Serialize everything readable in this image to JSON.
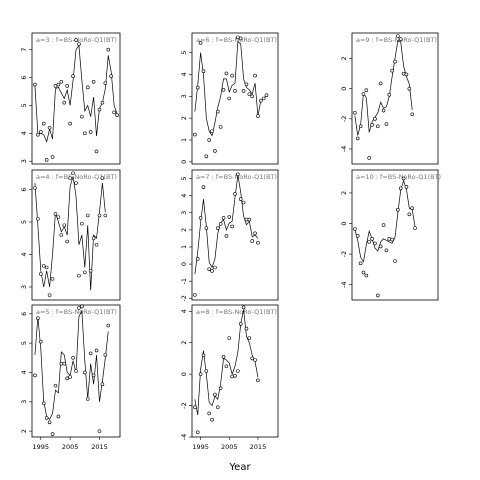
{
  "figure": {
    "xlabel": "Year"
  },
  "chart_data": [
    {
      "type": "line",
      "label": "a=3 : f=BS-NoRo-Q1(BT)",
      "xlim": [
        1992,
        2022
      ],
      "ylim": [
        2.9,
        7.6
      ],
      "yticks": [
        3,
        4,
        5,
        6,
        7
      ],
      "xticks": [
        1995,
        2005,
        2015
      ],
      "show_xticks": false,
      "x": [
        1993,
        1994,
        1995,
        1996,
        1997,
        1998,
        1999,
        2000,
        2001,
        2002,
        2003,
        2004,
        2005,
        2006,
        2007,
        2008,
        2009,
        2010,
        2011,
        2012,
        2013,
        2014,
        2015,
        2016,
        2017,
        2018,
        2019,
        2020,
        2021,
        2022
      ],
      "points": [
        5.75,
        3.95,
        4.05,
        4.35,
        3.05,
        4.2,
        3.15,
        5.7,
        5.75,
        5.85,
        5.1,
        5.7,
        4.35,
        6.05,
        7.35,
        7.2,
        4.6,
        4.0,
        5.65,
        4.05,
        5.85,
        3.35,
        4.85,
        5.1,
        5.8,
        7.0,
        6.05,
        4.75,
        4.65
      ],
      "fit": [
        5.7,
        4.0,
        4.0,
        3.95,
        3.7,
        4.15,
        3.8,
        5.6,
        5.65,
        5.45,
        5.25,
        5.55,
        5.0,
        5.9,
        7.0,
        7.15,
        5.9,
        4.8,
        5.0,
        4.6,
        5.3,
        3.9,
        4.9,
        5.1,
        5.6,
        6.8,
        6.2,
        5.0,
        4.7
      ]
    },
    {
      "type": "line",
      "label": "a=6 : f=BS-NoRo-Q1(BT)",
      "xlim": [
        1992,
        2022
      ],
      "ylim": [
        -0.1,
        5.9
      ],
      "yticks": [
        0,
        1,
        2,
        3,
        4,
        5
      ],
      "xticks": [
        1995,
        2005,
        2015
      ],
      "show_xticks": false,
      "x": [
        1993,
        1994,
        1995,
        1996,
        1997,
        1998,
        1999,
        2000,
        2001,
        2002,
        2003,
        2004,
        2005,
        2006,
        2007,
        2008,
        2009,
        2010,
        2011,
        2012,
        2013,
        2014,
        2015,
        2016,
        2017,
        2018,
        2019,
        2020,
        2021,
        2022
      ],
      "points": [
        1.25,
        3.4,
        5.45,
        4.15,
        0.25,
        1.0,
        1.4,
        0.5,
        2.3,
        1.6,
        3.3,
        4.05,
        2.9,
        3.95,
        3.25,
        5.7,
        5.65,
        3.25,
        3.55,
        3.1,
        3.0,
        3.95,
        2.1,
        2.8,
        2.9,
        3.05
      ],
      "fit": [
        2.3,
        3.5,
        5.0,
        4.0,
        2.0,
        1.4,
        1.2,
        1.8,
        2.5,
        3.0,
        3.8,
        3.8,
        3.2,
        3.5,
        3.6,
        5.5,
        5.4,
        3.8,
        3.4,
        3.3,
        3.1,
        3.6,
        2.1,
        2.8,
        2.95,
        3.0
      ]
    },
    {
      "type": "line",
      "label": "a=9 : f=BS-NoRo-Q1(BT)",
      "xlim": [
        1992,
        2022
      ],
      "ylim": [
        -5.0,
        3.7
      ],
      "yticks": [
        -4,
        -2,
        0,
        2
      ],
      "xticks": [
        1995,
        2005,
        2015
      ],
      "show_xticks": false,
      "x": [
        1993,
        1994,
        1995,
        1996,
        1997,
        1998,
        1999,
        2000,
        2001,
        2002,
        2003,
        2004,
        2005,
        2006,
        2007,
        2008,
        2009,
        2010,
        2011,
        2012,
        2013,
        2014,
        2015,
        2016,
        2017,
        2018,
        2019,
        2020,
        2021,
        2022
      ],
      "points": [
        -1.6,
        -3.3,
        -2.5,
        -0.35,
        -0.1,
        -4.6,
        -2.4,
        -2.0,
        -2.5,
        0.35,
        -1.45,
        -2.35,
        -0.4,
        1.2,
        1.8,
        3.5,
        3.3,
        1.0,
        0.95,
        0.0,
        -1.7
      ],
      "fit": [
        -1.8,
        -3.1,
        -2.4,
        -0.3,
        -0.6,
        -2.9,
        -2.2,
        -1.9,
        -1.6,
        -0.9,
        -1.3,
        -1.2,
        -0.5,
        0.8,
        2.0,
        3.2,
        3.1,
        1.5,
        0.8,
        0.3,
        -1.4
      ]
    },
    {
      "type": "line",
      "label": "a=4 : f=BS-NoRo-Q1(BT)",
      "xlim": [
        1992,
        2022
      ],
      "ylim": [
        2.6,
        6.6
      ],
      "yticks": [
        3,
        4,
        5,
        6
      ],
      "xticks": [
        1995,
        2005,
        2015
      ],
      "show_xticks": false,
      "x": [
        1993,
        1994,
        1995,
        1996,
        1997,
        1998,
        1999,
        2000,
        2001,
        2002,
        2003,
        2004,
        2005,
        2006,
        2007,
        2008,
        2009,
        2010,
        2011,
        2012,
        2013,
        2014,
        2015,
        2016,
        2017,
        2018,
        2019,
        2020,
        2021,
        2022
      ],
      "points": [
        6.05,
        5.1,
        3.4,
        3.65,
        3.6,
        2.75,
        3.25,
        5.25,
        5.15,
        4.6,
        4.9,
        4.4,
        6.35,
        6.5,
        6.2,
        3.35,
        4.95,
        3.45,
        5.2,
        3.5,
        4.5,
        4.3,
        5.2,
        6.35,
        5.2
      ],
      "fit": [
        6.2,
        4.9,
        3.5,
        3.0,
        3.5,
        3.0,
        4.0,
        5.3,
        5.0,
        4.7,
        4.85,
        4.6,
        6.1,
        6.4,
        5.8,
        4.3,
        4.6,
        3.6,
        4.9,
        2.9,
        4.6,
        4.5,
        5.3,
        6.2,
        5.3
      ]
    },
    {
      "type": "line",
      "label": "a=7 : f=BS-NoRo-Q1(BT)",
      "xlim": [
        1992,
        2022
      ],
      "ylim": [
        -2.1,
        5.5
      ],
      "yticks": [
        -2,
        -1,
        0,
        1,
        2,
        3,
        4,
        5
      ],
      "xticks": [
        1995,
        2005,
        2015
      ],
      "show_xticks": false,
      "x": [
        1993,
        1994,
        1995,
        1996,
        1997,
        1998,
        1999,
        2000,
        2001,
        2002,
        2003,
        2004,
        2005,
        2006,
        2007,
        2008,
        2009,
        2010,
        2011,
        2012,
        2013,
        2014,
        2015,
        2016,
        2017,
        2018,
        2019,
        2020,
        2021,
        2022
      ],
      "points": [
        -1.8,
        0.3,
        2.7,
        4.5,
        2.1,
        -0.3,
        -0.4,
        -0.2,
        2.1,
        2.35,
        2.7,
        1.65,
        2.75,
        2.2,
        4.1,
        5.25,
        3.8,
        3.6,
        2.6,
        2.6,
        1.35,
        1.8,
        1.25
      ],
      "fit": [
        -0.6,
        0.7,
        2.4,
        3.8,
        2.2,
        0.1,
        -0.2,
        0.3,
        1.8,
        2.4,
        2.6,
        2.0,
        2.4,
        2.5,
        3.9,
        5.2,
        4.2,
        2.8,
        2.3,
        2.5,
        1.6,
        1.7,
        1.5
      ]
    },
    {
      "type": "line",
      "label": "a=10 : f=BS-NoRo-Q1(BT)",
      "xlim": [
        1992,
        2022
      ],
      "ylim": [
        -5.0,
        3.5
      ],
      "yticks": [
        -4,
        -2,
        0,
        2
      ],
      "xticks": [
        1995,
        2005,
        2015
      ],
      "show_xticks": false,
      "x": [
        1993,
        1994,
        1995,
        1996,
        1997,
        1998,
        1999,
        2000,
        2001,
        2002,
        2003,
        2004,
        2005,
        2006,
        2007,
        2008,
        2009,
        2010,
        2011,
        2012,
        2013,
        2014,
        2015,
        2016,
        2017,
        2018,
        2019,
        2020,
        2021,
        2022
      ],
      "points": [
        -0.35,
        -0.8,
        -2.6,
        -3.2,
        -3.4,
        -1.2,
        -1.0,
        -1.3,
        -4.7,
        -1.5,
        -0.1,
        -1.75,
        -1.0,
        -1.05,
        -2.45,
        0.9,
        2.3,
        2.95,
        2.4,
        0.6,
        1.0,
        -0.3
      ],
      "fit": [
        -0.4,
        -1.1,
        -2.2,
        -2.5,
        -1.4,
        -0.5,
        -1.0,
        -1.6,
        -1.8,
        -1.2,
        -1.0,
        -1.1,
        -1.2,
        -1.3,
        -0.9,
        0.7,
        2.2,
        2.8,
        2.2,
        1.0,
        0.9,
        -0.2
      ]
    },
    {
      "type": "line",
      "label": "a=5 : f=BS-NoRo-Q1(BT)",
      "xlim": [
        1992,
        2022
      ],
      "ylim": [
        1.8,
        6.3
      ],
      "yticks": [
        2,
        3,
        4,
        5,
        6
      ],
      "xticks": [
        1995,
        2005,
        2015
      ],
      "show_xticks": true,
      "x": [
        1993,
        1994,
        1995,
        1996,
        1997,
        1998,
        1999,
        2000,
        2001,
        2002,
        2003,
        2004,
        2005,
        2006,
        2007,
        2008,
        2009,
        2010,
        2011,
        2012,
        2013,
        2014,
        2015,
        2016,
        2017,
        2018,
        2019,
        2020,
        2021,
        2022
      ],
      "points": [
        3.9,
        5.85,
        5.05,
        2.95,
        2.45,
        2.3,
        1.9,
        3.55,
        2.5,
        4.3,
        4.3,
        3.8,
        3.85,
        4.5,
        4.05,
        6.2,
        6.25,
        4.0,
        3.1,
        4.65,
        3.9,
        4.75,
        2.0,
        3.6,
        4.6,
        5.6
      ],
      "fit": [
        4.6,
        5.9,
        4.8,
        3.0,
        2.5,
        2.4,
        2.6,
        3.4,
        3.3,
        4.7,
        4.6,
        4.0,
        3.9,
        4.4,
        4.0,
        5.9,
        6.1,
        4.4,
        3.1,
        4.3,
        3.6,
        4.6,
        3.0,
        3.7,
        4.5,
        5.4
      ]
    },
    {
      "type": "line",
      "label": "a=8 : f=BS-NoRo-Q1(BT)",
      "xlim": [
        1992,
        2022
      ],
      "ylim": [
        -4.0,
        4.4
      ],
      "yticks": [
        -4,
        -2,
        0,
        2,
        4
      ],
      "xticks": [
        1995,
        2005,
        2015
      ],
      "show_xticks": true,
      "x": [
        1993,
        1994,
        1995,
        1996,
        1997,
        1998,
        1999,
        2000,
        2001,
        2002,
        2003,
        2004,
        2005,
        2006,
        2007,
        2008,
        2009,
        2010,
        2011,
        2012,
        2013,
        2014,
        2015,
        2016,
        2017,
        2018,
        2019,
        2020,
        2021,
        2022
      ],
      "points": [
        -2.1,
        -3.7,
        0.0,
        1.2,
        0.2,
        -2.5,
        -2.9,
        -1.3,
        -2.1,
        -0.9,
        1.1,
        0.5,
        2.3,
        -0.15,
        -0.1,
        0.2,
        3.2,
        4.25,
        2.9,
        2.3,
        1.0,
        0.9,
        -0.4
      ],
      "fit": [
        -1.6,
        -2.6,
        0.3,
        1.5,
        0.0,
        -1.8,
        -2.0,
        -1.4,
        -1.6,
        -0.6,
        1.0,
        0.9,
        0.7,
        0.0,
        0.5,
        1.4,
        3.2,
        4.1,
        2.4,
        2.0,
        1.2,
        0.8,
        -0.2
      ]
    }
  ]
}
